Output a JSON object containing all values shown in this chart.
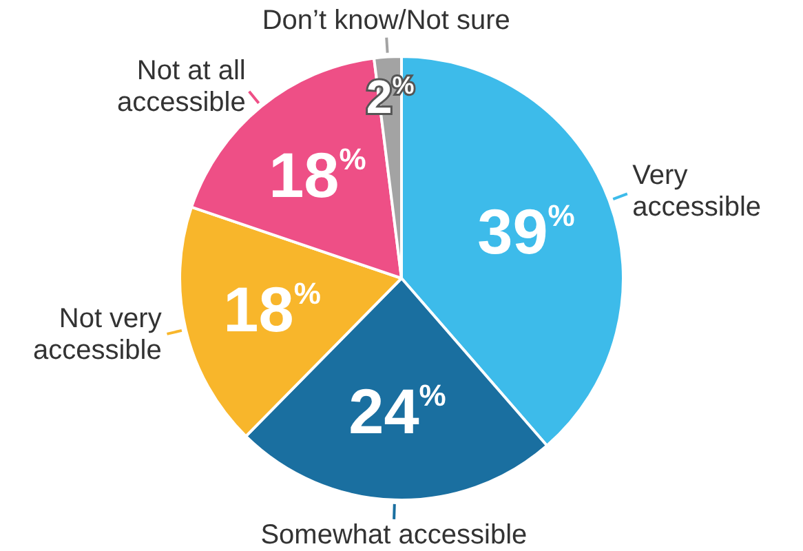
{
  "chart_data": {
    "type": "pie",
    "categories": [
      "Very accessible",
      "Somewhat accessible",
      "Not very accessible",
      "Not at all accessible",
      "Don’t know/Not sure"
    ],
    "values": [
      39,
      24,
      18,
      18,
      2
    ],
    "colors": [
      "#3dbbea",
      "#1a6fa0",
      "#f8b62b",
      "#ee4f86",
      "#a3a3a3"
    ],
    "value_labels": [
      "39%",
      "24%",
      "18%",
      "18%",
      "2%"
    ],
    "legend": false
  }
}
